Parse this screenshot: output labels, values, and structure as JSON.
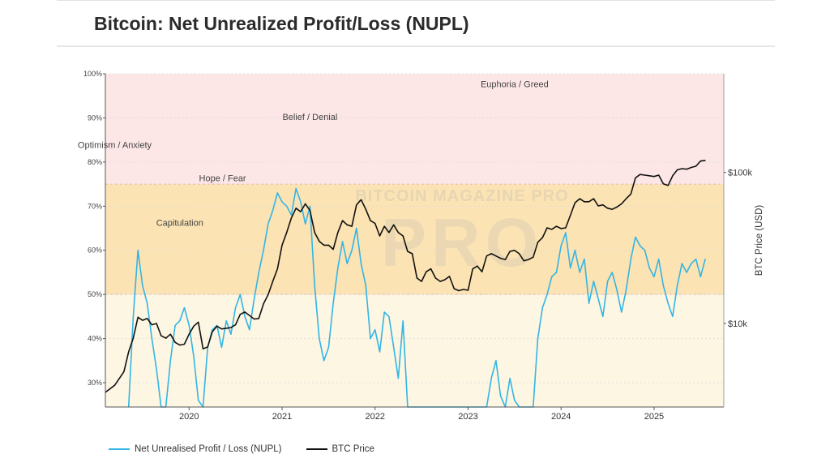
{
  "page_title": "Bitcoin: Net Unrealized Profit/Loss (NUPL)",
  "chart_data": {
    "type": "line",
    "title": "Bitcoin: Net Unrealized Profit/Loss (NUPL)",
    "xlabel": "",
    "ylabel": "",
    "y2label": "BTC Price (USD)",
    "x_ticks": [
      "2020",
      "2021",
      "2022",
      "2023",
      "2024",
      "2025"
    ],
    "y_ticks": [
      "30%",
      "40%",
      "50%",
      "60%",
      "70%",
      "80%",
      "90%",
      "100%"
    ],
    "y_tick_values": [
      30,
      40,
      50,
      60,
      70,
      80,
      90,
      100
    ],
    "y2_ticks": [
      "$10k",
      "$100k"
    ],
    "y2_tick_values": [
      10000,
      100000
    ],
    "xlim": [
      2019.1,
      2025.75
    ],
    "ylim": [
      24.5,
      100
    ],
    "y2lim_log": [
      2800,
      450000
    ],
    "zones": [
      {
        "label": "Capitulation",
        "from": -100,
        "to": 50,
        "color": "#fdf6e3"
      },
      {
        "label": "Hope / Fear",
        "from": 50,
        "to": 75,
        "color": "#fbe3b3"
      },
      {
        "label": "Optimism / Anxiety",
        "from": 75,
        "to": 100,
        "color": "#fde6e6"
      }
    ],
    "zone_labels": [
      {
        "text": "Euphoria / Greed",
        "x": 2023.5,
        "y": 97
      },
      {
        "text": "Belief / Denial",
        "x": 2021.3,
        "y": 89.5
      },
      {
        "text": "Optimism / Anxiety",
        "x": 2019.2,
        "y": 83.2
      },
      {
        "text": "Hope / Fear",
        "x": 2020.36,
        "y": 75.7
      },
      {
        "text": "Capitulation",
        "x": 2019.9,
        "y": 65.6
      }
    ],
    "watermark": "BITCOIN MAGAZINE PRO",
    "series": [
      {
        "name": "Net Unrealised Profit / Loss (NUPL)",
        "axis": "left",
        "color": "#33b5e5",
        "x": [
          2019.35,
          2019.4,
          2019.45,
          2019.5,
          2019.55,
          2019.6,
          2019.65,
          2019.7,
          2019.75,
          2019.8,
          2019.85,
          2019.9,
          2019.95,
          2020.0,
          2020.05,
          2020.1,
          2020.15,
          2020.2,
          2020.25,
          2020.3,
          2020.35,
          2020.4,
          2020.45,
          2020.5,
          2020.55,
          2020.6,
          2020.65,
          2020.7,
          2020.75,
          2020.8,
          2020.85,
          2020.9,
          2020.95,
          2021.0,
          2021.05,
          2021.1,
          2021.15,
          2021.2,
          2021.25,
          2021.3,
          2021.35,
          2021.4,
          2021.45,
          2021.5,
          2021.55,
          2021.6,
          2021.65,
          2021.7,
          2021.75,
          2021.8,
          2021.85,
          2021.9,
          2021.95,
          2022.0,
          2022.05,
          2022.1,
          2022.15,
          2022.2,
          2022.25,
          2022.3,
          2022.35,
          2022.4,
          2022.45,
          2022.5,
          2022.55,
          2023.2,
          2023.25,
          2023.3,
          2023.35,
          2023.4,
          2023.45,
          2023.5,
          2023.55,
          2023.6,
          2023.65,
          2023.7,
          2023.75,
          2023.8,
          2023.85,
          2023.9,
          2023.95,
          2024.0,
          2024.05,
          2024.1,
          2024.15,
          2024.2,
          2024.25,
          2024.3,
          2024.35,
          2024.4,
          2024.45,
          2024.5,
          2024.55,
          2024.6,
          2024.65,
          2024.7,
          2024.75,
          2024.8,
          2024.85,
          2024.9,
          2024.95,
          2025.0,
          2025.05,
          2025.1,
          2025.15,
          2025.2,
          2025.25,
          2025.3,
          2025.35,
          2025.4,
          2025.45,
          2025.5,
          2025.55
        ],
        "values": [
          24.5,
          45,
          60,
          52,
          48,
          40,
          33,
          24.5,
          24.5,
          35,
          43,
          44,
          47,
          43,
          36,
          26,
          24.5,
          38,
          42,
          43,
          38,
          44,
          41,
          47,
          50,
          45,
          42,
          49,
          55,
          60,
          66,
          69,
          73,
          71,
          70,
          68,
          74,
          71,
          66,
          70,
          52,
          40,
          35,
          38,
          48,
          56,
          62,
          57,
          60,
          65,
          57,
          52,
          40,
          42,
          37,
          46,
          45,
          38,
          31,
          44,
          24.5,
          24.5,
          24.5,
          24.5,
          24.5,
          24.5,
          31,
          35,
          27,
          24.5,
          31,
          26,
          24.5,
          24.5,
          24.5,
          24.5,
          40,
          47,
          50,
          54,
          55,
          61,
          64,
          56,
          60,
          55,
          58,
          48,
          53,
          49,
          45,
          53,
          55,
          51,
          46,
          51,
          58,
          63,
          61,
          60,
          56,
          54,
          58,
          52,
          48,
          45,
          52,
          57,
          55,
          57,
          58,
          54,
          58
        ],
        "clipped_below_axis": true
      },
      {
        "name": "BTC Price",
        "axis": "right",
        "color": "#111111",
        "x": [
          2019.1,
          2019.2,
          2019.3,
          2019.35,
          2019.4,
          2019.45,
          2019.5,
          2019.55,
          2019.6,
          2019.65,
          2019.7,
          2019.75,
          2019.8,
          2019.85,
          2019.9,
          2019.95,
          2020.0,
          2020.05,
          2020.1,
          2020.15,
          2020.2,
          2020.25,
          2020.3,
          2020.35,
          2020.4,
          2020.45,
          2020.5,
          2020.55,
          2020.6,
          2020.65,
          2020.7,
          2020.75,
          2020.8,
          2020.85,
          2020.9,
          2020.95,
          2021.0,
          2021.05,
          2021.1,
          2021.15,
          2021.2,
          2021.25,
          2021.3,
          2021.35,
          2021.4,
          2021.45,
          2021.5,
          2021.55,
          2021.6,
          2021.65,
          2021.7,
          2021.75,
          2021.8,
          2021.85,
          2021.9,
          2021.95,
          2022.0,
          2022.05,
          2022.1,
          2022.15,
          2022.2,
          2022.25,
          2022.3,
          2022.35,
          2022.4,
          2022.45,
          2022.5,
          2022.55,
          2022.6,
          2022.65,
          2022.7,
          2022.75,
          2022.8,
          2022.85,
          2022.9,
          2022.95,
          2023.0,
          2023.05,
          2023.1,
          2023.15,
          2023.2,
          2023.25,
          2023.3,
          2023.35,
          2023.4,
          2023.45,
          2023.5,
          2023.55,
          2023.6,
          2023.65,
          2023.7,
          2023.75,
          2023.8,
          2023.85,
          2023.9,
          2023.95,
          2024.0,
          2024.05,
          2024.1,
          2024.15,
          2024.2,
          2024.25,
          2024.3,
          2024.35,
          2024.4,
          2024.45,
          2024.5,
          2024.55,
          2024.6,
          2024.65,
          2024.7,
          2024.75,
          2024.8,
          2024.85,
          2024.9,
          2024.95,
          2025.0,
          2025.05,
          2025.1,
          2025.15,
          2025.2,
          2025.25,
          2025.3,
          2025.35,
          2025.4,
          2025.45,
          2025.5,
          2025.55
        ],
        "values": [
          3500,
          3900,
          4800,
          6500,
          8000,
          11000,
          10500,
          10800,
          9800,
          10000,
          8300,
          8000,
          8500,
          7500,
          7200,
          7300,
          8500,
          9600,
          10200,
          6800,
          7000,
          8800,
          9600,
          9200,
          9300,
          9400,
          9800,
          11500,
          11900,
          11300,
          10700,
          10800,
          13500,
          15500,
          19000,
          23000,
          33000,
          40000,
          50000,
          58000,
          55000,
          62000,
          56000,
          40000,
          35000,
          33000,
          33000,
          31000,
          40000,
          48000,
          45000,
          44000,
          61000,
          66000,
          57000,
          48000,
          46000,
          38000,
          44000,
          40000,
          45000,
          40000,
          38000,
          30000,
          29000,
          20000,
          19000,
          22000,
          23000,
          20000,
          19000,
          19500,
          20500,
          17000,
          16500,
          16800,
          16600,
          23000,
          24000,
          22000,
          28000,
          29000,
          28000,
          27000,
          26500,
          30000,
          30500,
          29000,
          26000,
          26500,
          27500,
          34500,
          37000,
          43000,
          42000,
          44000,
          42500,
          43000,
          52000,
          63000,
          67000,
          64000,
          64000,
          67000,
          60000,
          61000,
          58000,
          57000,
          59000,
          62000,
          67000,
          72000,
          92000,
          97000,
          96000,
          95000,
          94000,
          96000,
          84000,
          82000,
          95000,
          104000,
          106000,
          105000,
          108000,
          110000,
          119000,
          120000
        ],
        "clipped_below_axis": false
      }
    ]
  },
  "legend": [
    {
      "label": "Net Unrealised Profit / Loss (NUPL)",
      "color": "#33b5e5"
    },
    {
      "label": "BTC Price",
      "color": "#111111"
    }
  ]
}
